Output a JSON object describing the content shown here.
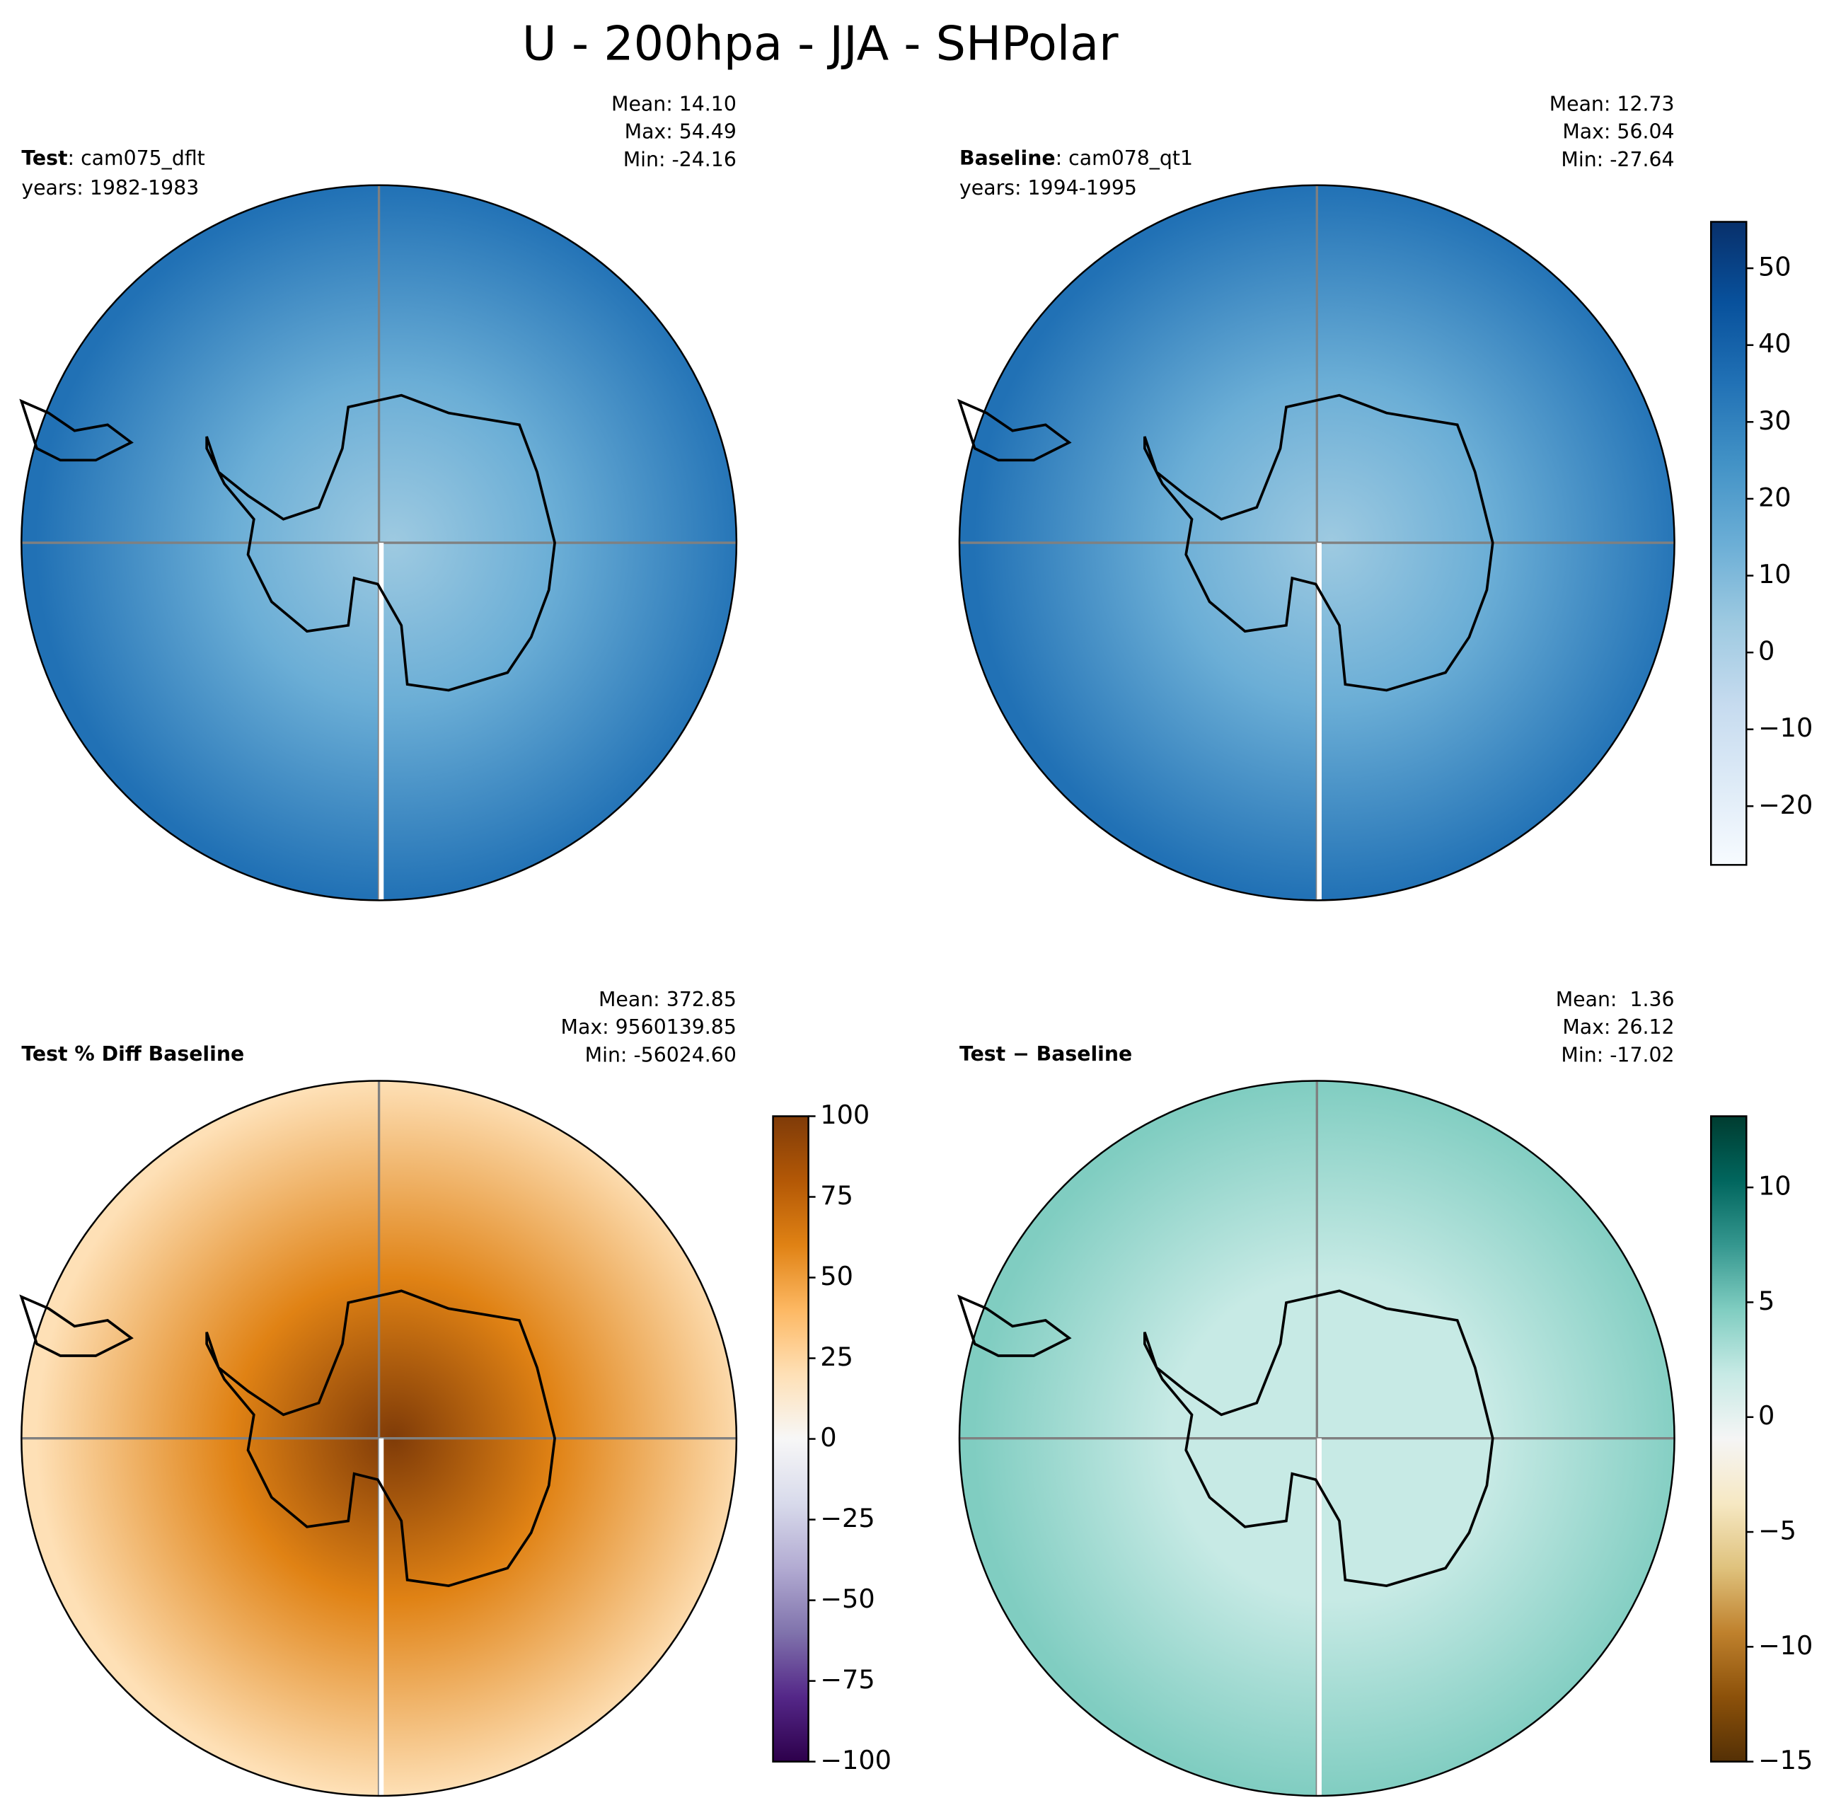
{
  "title": "U - 200hpa - JJA - SHPolar",
  "chart_data": [
    {
      "type": "map",
      "label_bold": "Test",
      "label": ": cam075_dflt",
      "years": "years: 1982-1983",
      "stats": [
        "Mean: 14.10",
        "Max: 54.49",
        "Min: -24.16"
      ],
      "colormap": [
        "#f7fbff",
        "#deebf7",
        "#c6dbef",
        "#9ecae1",
        "#6baed6",
        "#4292c6",
        "#2171b5",
        "#08519c",
        "#08306b"
      ]
    },
    {
      "type": "map",
      "label_bold": "Baseline",
      "label": ": cam078_qt1",
      "years": "years: 1994-1995",
      "stats": [
        "Mean: 12.73",
        "Max: 56.04",
        "Min: -27.64"
      ],
      "colormap": [
        "#f7fbff",
        "#deebf7",
        "#c6dbef",
        "#9ecae1",
        "#6baed6",
        "#4292c6",
        "#2171b5",
        "#08519c",
        "#08306b"
      ],
      "colorbar": {
        "lim": [
          -27.64,
          56.04
        ],
        "ticks": [
          {
            "value": -20,
            "label": "−20"
          },
          {
            "value": -10,
            "label": "−10"
          },
          0,
          10,
          20,
          30,
          40,
          50
        ]
      }
    },
    {
      "type": "map",
      "label_bold": "Test % Diff Baseline",
      "stats": [
        "Mean: 372.85",
        "Max: 9560139.85",
        "Min: -56024.60"
      ],
      "colormap": [
        "#2d004b",
        "#542788",
        "#8073ac",
        "#b2abd2",
        "#d8daeb",
        "#f7f7f7",
        "#fee0b6",
        "#fdb863",
        "#e08214",
        "#b35806",
        "#7f3b08"
      ],
      "colorbar": {
        "lim": [
          -100,
          100
        ],
        "ticks": [
          {
            "value": -100,
            "label": "−100"
          },
          {
            "value": -75,
            "label": "−75"
          },
          {
            "value": -50,
            "label": "−50"
          },
          {
            "value": -25,
            "label": "−25"
          },
          0,
          25,
          50,
          75,
          100
        ]
      }
    },
    {
      "type": "map",
      "label_bold": "Test − Baseline",
      "stats": [
        "Mean:  1.36",
        "Max: 26.12",
        "Min: -17.02"
      ],
      "colormap": [
        "#543005",
        "#8c510a",
        "#bf812d",
        "#dfc27d",
        "#f6e8c3",
        "#f5f5f5",
        "#c7eae5",
        "#80cdc1",
        "#35978f",
        "#01665e",
        "#003c30"
      ],
      "colorbar": {
        "lim": [
          -15,
          13.1
        ],
        "ticks": [
          {
            "value": -15,
            "label": "−15"
          },
          {
            "value": -10,
            "label": "−10"
          },
          {
            "value": -5,
            "label": "−5"
          },
          0,
          5,
          10
        ]
      }
    }
  ]
}
